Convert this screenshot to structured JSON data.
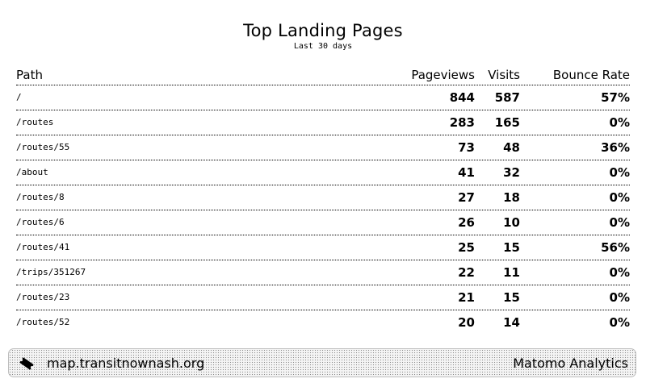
{
  "header": {
    "title": "Top Landing Pages",
    "subtitle": "Last 30 days"
  },
  "table": {
    "columns": [
      "Path",
      "Pageviews",
      "Visits",
      "Bounce Rate"
    ],
    "rows": [
      {
        "path": "/",
        "pageviews": "844",
        "visits": "587",
        "bounce_rate": "57%"
      },
      {
        "path": "/routes",
        "pageviews": "283",
        "visits": "165",
        "bounce_rate": "0%"
      },
      {
        "path": "/routes/55",
        "pageviews": "73",
        "visits": "48",
        "bounce_rate": "36%"
      },
      {
        "path": "/about",
        "pageviews": "41",
        "visits": "32",
        "bounce_rate": "0%"
      },
      {
        "path": "/routes/8",
        "pageviews": "27",
        "visits": "18",
        "bounce_rate": "0%"
      },
      {
        "path": "/routes/6",
        "pageviews": "26",
        "visits": "10",
        "bounce_rate": "0%"
      },
      {
        "path": "/routes/41",
        "pageviews": "25",
        "visits": "15",
        "bounce_rate": "56%"
      },
      {
        "path": "/trips/351267",
        "pageviews": "22",
        "visits": "11",
        "bounce_rate": "0%"
      },
      {
        "path": "/routes/23",
        "pageviews": "21",
        "visits": "15",
        "bounce_rate": "0%"
      },
      {
        "path": "/routes/52",
        "pageviews": "20",
        "visits": "14",
        "bounce_rate": "0%"
      }
    ]
  },
  "footer": {
    "icon": "ticket-icon",
    "site": "map.transitnownash.org",
    "brand": "Matomo Analytics"
  }
}
